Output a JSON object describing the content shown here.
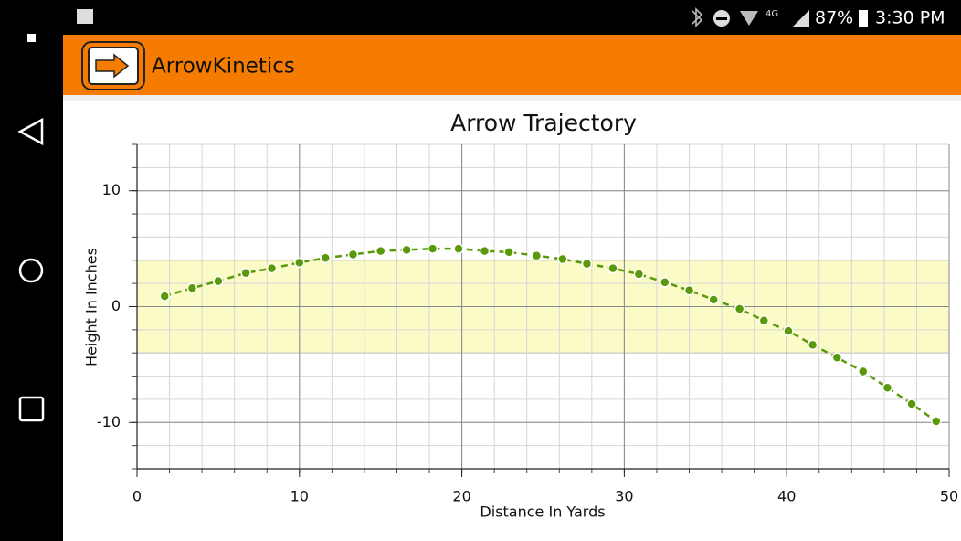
{
  "status_bar": {
    "battery": "87%",
    "time": "3:30 PM"
  },
  "app_bar": {
    "title": "ArrowKinetics"
  },
  "chart_data": {
    "type": "line",
    "title": "Arrow Trajectory",
    "x_label": "Distance In Yards",
    "y_label": "Height In Inches",
    "xlim": [
      0,
      50
    ],
    "ylim": [
      -14,
      14
    ],
    "xticks": [
      0,
      10,
      20,
      30,
      40,
      50
    ],
    "yticks": [
      -10,
      0,
      10
    ],
    "x_minor_step": 2,
    "y_minor_step": 2,
    "grid": true,
    "target_band": [
      -4,
      4
    ],
    "band_color": "#fbfbc8",
    "series": [
      {
        "color": "#5a9a0a",
        "x": [
          1.7,
          3.4,
          5.0,
          6.7,
          8.3,
          10.0,
          11.6,
          13.3,
          15.0,
          16.6,
          18.2,
          19.8,
          21.4,
          22.9,
          24.6,
          26.2,
          27.7,
          29.3,
          30.9,
          32.5,
          34.0,
          35.5,
          37.1,
          38.6,
          40.1,
          41.6,
          43.1,
          44.7,
          46.2,
          47.7,
          49.2
        ],
        "values": [
          0.9,
          1.6,
          2.2,
          2.9,
          3.3,
          3.8,
          4.2,
          4.5,
          4.8,
          4.9,
          5.0,
          5.0,
          4.8,
          4.7,
          4.4,
          4.1,
          3.7,
          3.3,
          2.8,
          2.1,
          1.4,
          0.6,
          -0.2,
          -1.2,
          -2.1,
          -3.3,
          -4.4,
          -5.6,
          -7.0,
          -8.4,
          -9.9
        ]
      }
    ]
  }
}
